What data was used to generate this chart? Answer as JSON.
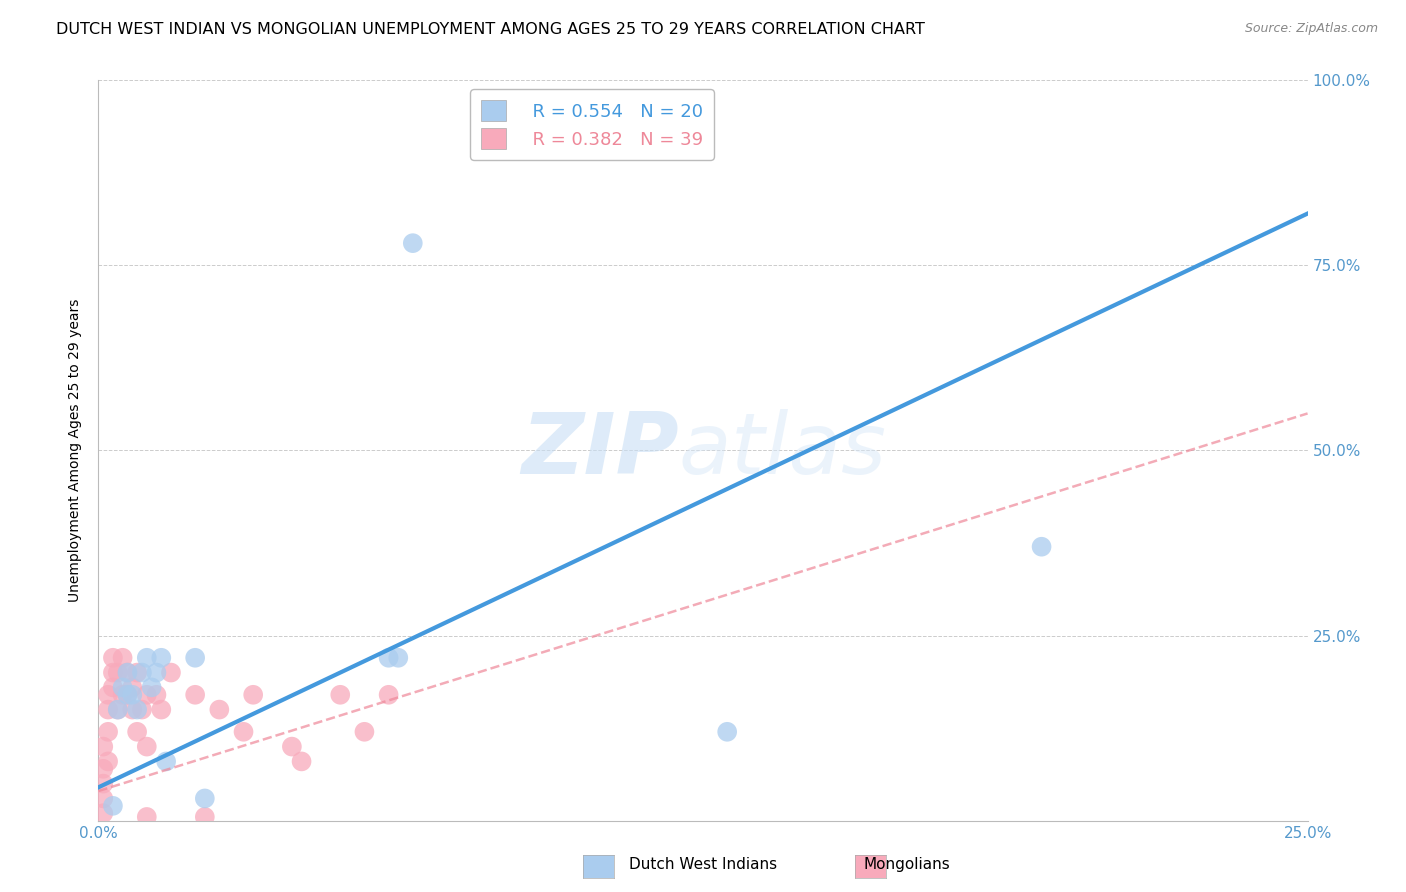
{
  "title": "DUTCH WEST INDIAN VS MONGOLIAN UNEMPLOYMENT AMONG AGES 25 TO 29 YEARS CORRELATION CHART",
  "source": "Source: ZipAtlas.com",
  "ylabel": "Unemployment Among Ages 25 to 29 years",
  "xlim": [
    0.0,
    0.25
  ],
  "ylim": [
    0.0,
    1.0
  ],
  "xticks": [
    0.0,
    0.05,
    0.1,
    0.15,
    0.2,
    0.25
  ],
  "yticks": [
    0.0,
    0.25,
    0.5,
    0.75,
    1.0
  ],
  "xtick_labels": [
    "0.0%",
    "",
    "",
    "",
    "",
    "25.0%"
  ],
  "ytick_labels_right": [
    "",
    "25.0%",
    "50.0%",
    "75.0%",
    "100.0%"
  ],
  "background_color": "#ffffff",
  "grid_color": "#cccccc",
  "watermark_zip": "ZIP",
  "watermark_atlas": "atlas",
  "blue_scatter_x": [
    0.003,
    0.004,
    0.005,
    0.006,
    0.006,
    0.007,
    0.008,
    0.009,
    0.01,
    0.011,
    0.012,
    0.013,
    0.014,
    0.02,
    0.022,
    0.06,
    0.062,
    0.065,
    0.13,
    0.195
  ],
  "blue_scatter_y": [
    0.02,
    0.15,
    0.18,
    0.17,
    0.2,
    0.17,
    0.15,
    0.2,
    0.22,
    0.18,
    0.2,
    0.22,
    0.08,
    0.22,
    0.03,
    0.22,
    0.22,
    0.78,
    0.12,
    0.37
  ],
  "pink_scatter_x": [
    0.001,
    0.001,
    0.001,
    0.001,
    0.001,
    0.002,
    0.002,
    0.002,
    0.002,
    0.003,
    0.003,
    0.003,
    0.004,
    0.004,
    0.005,
    0.005,
    0.006,
    0.006,
    0.007,
    0.007,
    0.008,
    0.008,
    0.009,
    0.01,
    0.01,
    0.012,
    0.013,
    0.015,
    0.02,
    0.022,
    0.025,
    0.03,
    0.032,
    0.04,
    0.042,
    0.05,
    0.055,
    0.06,
    0.01
  ],
  "pink_scatter_y": [
    0.03,
    0.05,
    0.07,
    0.1,
    0.01,
    0.12,
    0.15,
    0.17,
    0.08,
    0.18,
    0.2,
    0.22,
    0.15,
    0.2,
    0.17,
    0.22,
    0.2,
    0.17,
    0.18,
    0.15,
    0.2,
    0.12,
    0.15,
    0.17,
    0.1,
    0.17,
    0.15,
    0.2,
    0.17,
    0.005,
    0.15,
    0.12,
    0.17,
    0.1,
    0.08,
    0.17,
    0.12,
    0.17,
    0.005
  ],
  "blue_line_x": [
    0.0,
    0.25
  ],
  "blue_line_y": [
    0.045,
    0.82
  ],
  "pink_line_x": [
    0.0,
    0.25
  ],
  "pink_line_y": [
    0.04,
    0.55
  ],
  "blue_scatter_color": "#aaccee",
  "pink_scatter_color": "#f8aabb",
  "blue_line_color": "#4499dd",
  "pink_line_color": "#ee8899",
  "tick_color": "#5599cc",
  "legend_R_blue": "R = 0.554",
  "legend_N_blue": "N = 20",
  "legend_R_pink": "R = 0.382",
  "legend_N_pink": "N = 39",
  "legend_label_blue": "Dutch West Indians",
  "legend_label_pink": "Mongolians",
  "title_fontsize": 11.5,
  "axis_label_fontsize": 10,
  "tick_fontsize": 11,
  "legend_fontsize": 13
}
